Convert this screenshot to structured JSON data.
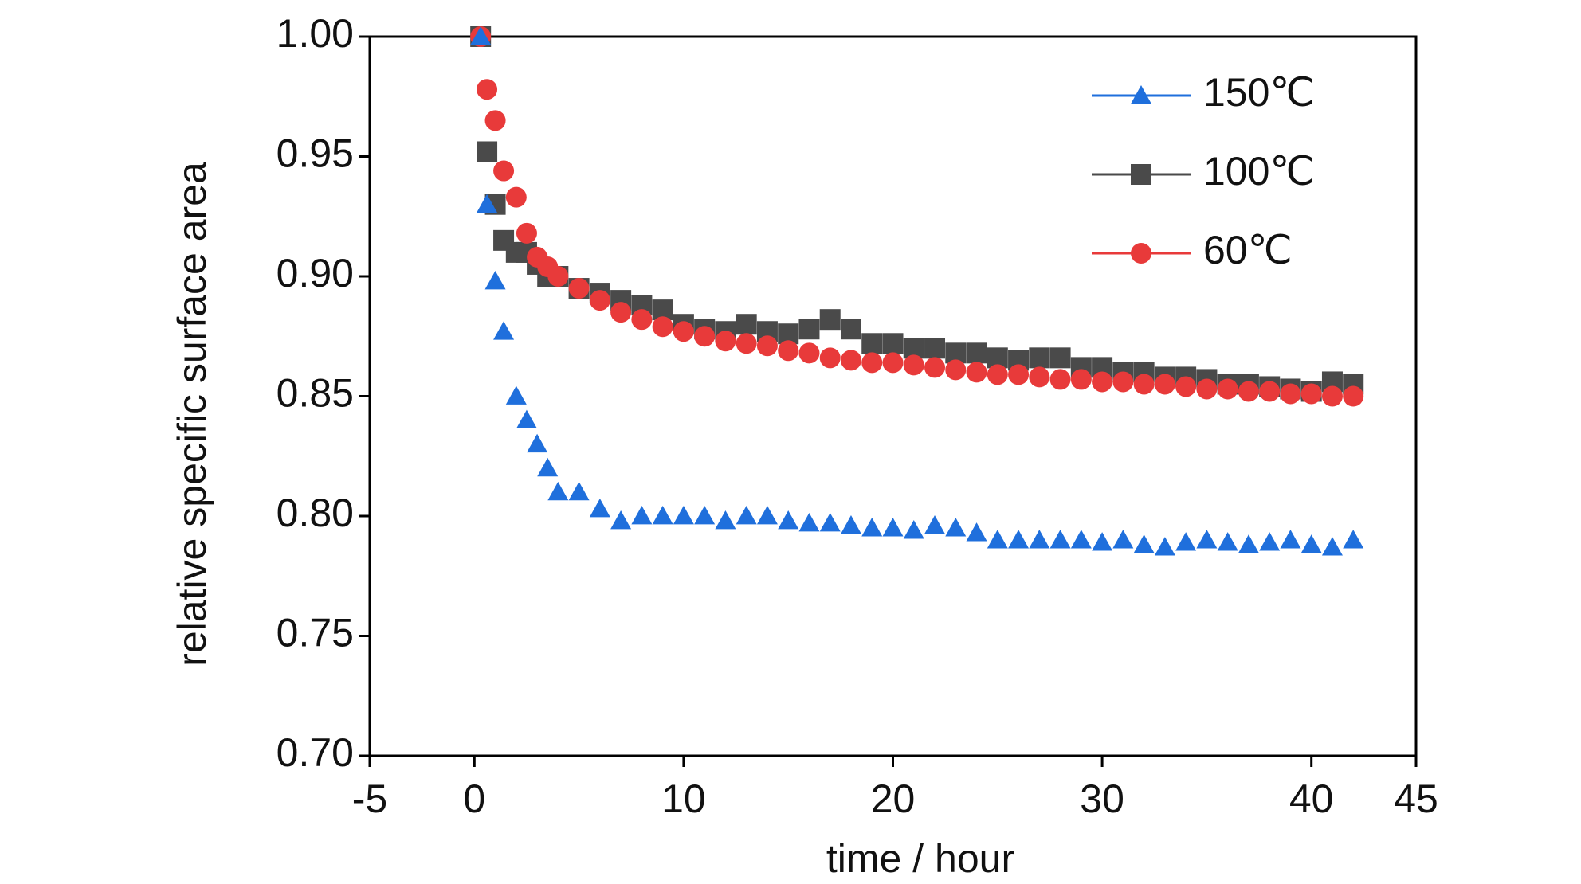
{
  "chart_data": {
    "type": "scatter",
    "x_label": "time / hour",
    "y_label": "relative specific surface area",
    "xlim": [
      -5,
      45
    ],
    "xticks": [
      -5,
      0,
      10,
      20,
      30,
      40,
      45
    ],
    "ylim": [
      0.7,
      1.0
    ],
    "yticks": [
      {
        "value": 0.7,
        "label": "0.70"
      },
      {
        "value": 0.75,
        "label": "0.75"
      },
      {
        "value": 0.8,
        "label": "0.80"
      },
      {
        "value": 0.85,
        "label": "0.85"
      },
      {
        "value": 0.9,
        "label": "0.90"
      },
      {
        "value": 0.95,
        "label": "0.95"
      },
      {
        "value": 1.0,
        "label": "1.00"
      }
    ],
    "legend": "upper right",
    "x": [
      0.3,
      0.6,
      1,
      1.4,
      2,
      2.5,
      3,
      3.5,
      4,
      5,
      6,
      7,
      8,
      9,
      10,
      11,
      12,
      13,
      14,
      15,
      16,
      17,
      18,
      19,
      20,
      21,
      22,
      23,
      24,
      25,
      26,
      27,
      28,
      29,
      30,
      31,
      32,
      33,
      34,
      35,
      36,
      37,
      38,
      39,
      40,
      41,
      42
    ],
    "series": [
      {
        "name": "150℃",
        "color": "#1f6fdc",
        "marker": "triangle",
        "values": [
          1.0,
          0.93,
          0.898,
          0.877,
          0.85,
          0.84,
          0.83,
          0.82,
          0.81,
          0.81,
          0.803,
          0.798,
          0.8,
          0.8,
          0.8,
          0.8,
          0.798,
          0.8,
          0.8,
          0.798,
          0.797,
          0.797,
          0.796,
          0.795,
          0.795,
          0.794,
          0.796,
          0.795,
          0.793,
          0.79,
          0.79,
          0.79,
          0.79,
          0.79,
          0.789,
          0.79,
          0.788,
          0.787,
          0.789,
          0.79,
          0.789,
          0.788,
          0.789,
          0.79,
          0.788,
          0.787,
          0.79
        ]
      },
      {
        "name": "100℃",
        "color": "#4a4a4a",
        "marker": "square",
        "values": [
          1.0,
          0.952,
          0.93,
          0.915,
          0.91,
          0.91,
          0.905,
          0.9,
          0.9,
          0.895,
          0.893,
          0.89,
          0.888,
          0.886,
          0.88,
          0.878,
          0.877,
          0.88,
          0.877,
          0.876,
          0.878,
          0.882,
          0.878,
          0.872,
          0.872,
          0.87,
          0.87,
          0.868,
          0.868,
          0.866,
          0.865,
          0.866,
          0.866,
          0.862,
          0.862,
          0.86,
          0.86,
          0.858,
          0.858,
          0.857,
          0.855,
          0.855,
          0.854,
          0.853,
          0.852,
          0.856,
          0.855
        ]
      },
      {
        "name": "60℃",
        "color": "#e83a3a",
        "marker": "circle",
        "values": [
          1.0,
          0.978,
          0.965,
          0.944,
          0.933,
          0.918,
          0.908,
          0.904,
          0.9,
          0.895,
          0.89,
          0.885,
          0.882,
          0.879,
          0.877,
          0.875,
          0.873,
          0.872,
          0.871,
          0.869,
          0.868,
          0.866,
          0.865,
          0.864,
          0.864,
          0.863,
          0.862,
          0.861,
          0.86,
          0.859,
          0.859,
          0.858,
          0.857,
          0.857,
          0.856,
          0.856,
          0.855,
          0.855,
          0.854,
          0.853,
          0.853,
          0.852,
          0.852,
          0.851,
          0.851,
          0.85,
          0.85
        ]
      }
    ]
  }
}
